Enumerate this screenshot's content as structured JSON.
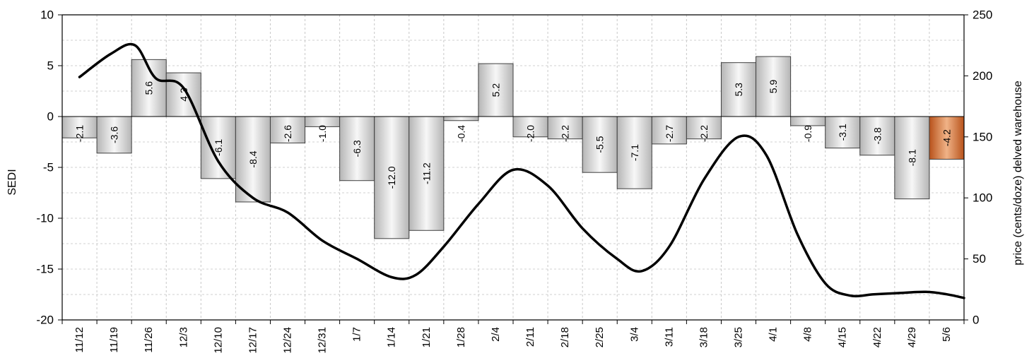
{
  "chart_data": {
    "type": "bar+line",
    "categories": [
      "11/12",
      "11/19",
      "11/26",
      "12/3",
      "12/10",
      "12/17",
      "12/24",
      "12/31",
      "1/7",
      "1/14",
      "1/21",
      "1/28",
      "2/4",
      "2/11",
      "2/18",
      "2/25",
      "3/4",
      "3/11",
      "3/18",
      "3/25",
      "4/1",
      "4/8",
      "4/15",
      "4/22",
      "4/29",
      "5/6"
    ],
    "bar_series": {
      "values": [
        -2.1,
        -3.6,
        5.6,
        4.3,
        -6.1,
        -8.4,
        -2.6,
        -1.0,
        -6.3,
        -12.0,
        -11.2,
        -0.4,
        5.2,
        -2.0,
        -2.2,
        -5.5,
        -7.1,
        -2.7,
        -2.2,
        5.3,
        5.9,
        -0.9,
        -3.1,
        -3.8,
        -8.1,
        -4.2
      ],
      "labels": [
        "-2.1",
        "-3.6",
        "5.6",
        "4.3",
        "-6.1",
        "-8.4",
        "-2.6",
        "-1.0",
        "-6.3",
        "-12.0",
        "-11.2",
        "-0.4",
        "5.2",
        "-2.0",
        "-2.2",
        "-5.5",
        "-7.1",
        "-2.7",
        "-2.2",
        "5.3",
        "5.9",
        "-0.9",
        "-3.1",
        "-3.8",
        "-8.1",
        "-4.2"
      ],
      "highlight_index": 25,
      "colors": {
        "bar_light": "#f7f7f7",
        "bar_dark": "#b5b5b5",
        "highlight_light": "#f0b387",
        "highlight_dark": "#b8521b",
        "bar_stroke": "#404040"
      }
    },
    "line_series": {
      "values": [
        199,
        218,
        225,
        198,
        190,
        130,
        100,
        88,
        65,
        50,
        35,
        37,
        60,
        95,
        123,
        110,
        75,
        50,
        40,
        60,
        115,
        150,
        135,
        70,
        30,
        20,
        21,
        22,
        23,
        21,
        18
      ],
      "x_positions": [
        0,
        0.9,
        1.6,
        2.2,
        3.0,
        4.0,
        5.0,
        6.0,
        7.0,
        8.0,
        9.0,
        9.7,
        10.5,
        11.5,
        12.5,
        13.5,
        14.5,
        15.5,
        16.2,
        17.0,
        18.0,
        19.0,
        19.8,
        20.7,
        21.5,
        22.2,
        22.9,
        23.6,
        24.4,
        25.0,
        25.5
      ],
      "color": "#000000"
    },
    "ylabel": "SEDI",
    "y2label": "price (cents/doze) delved warehouse",
    "ylim": [
      -20,
      10
    ],
    "y_ticks": [
      10,
      5,
      0,
      -5,
      -10,
      -15,
      -20
    ],
    "y2lim": [
      0,
      250
    ],
    "y2_ticks": [
      250,
      200,
      150,
      100,
      50,
      0
    ],
    "grid": true
  }
}
